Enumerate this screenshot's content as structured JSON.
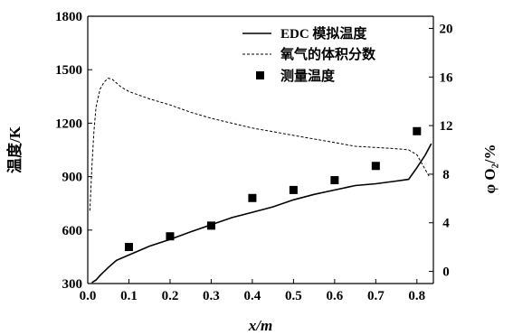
{
  "chart_data": {
    "type": "line",
    "xlabel": "x/m",
    "ylabel_left": "温度/K",
    "ylabel_right": "φ O₂/%",
    "xlim": [
      0,
      0.84
    ],
    "ylim_left": [
      300,
      1800
    ],
    "ylim_right": [
      -1,
      21
    ],
    "x_ticks": [
      "0.0",
      "0.1",
      "0.2",
      "0.3",
      "0.4",
      "0.5",
      "0.6",
      "0.7",
      "0.8"
    ],
    "y_ticks_left": [
      "300",
      "600",
      "900",
      "1200",
      "1500",
      "1800"
    ],
    "y_ticks_right": [
      "0",
      "4",
      "8",
      "12",
      "16",
      "20"
    ],
    "legend_position": "top-right",
    "series": [
      {
        "name": "EDC 模拟温度",
        "axis": "left",
        "style": "solid",
        "color": "#000000",
        "points": [
          [
            0.01,
            305
          ],
          [
            0.02,
            320
          ],
          [
            0.03,
            345
          ],
          [
            0.05,
            390
          ],
          [
            0.07,
            430
          ],
          [
            0.1,
            460
          ],
          [
            0.12,
            480
          ],
          [
            0.15,
            510
          ],
          [
            0.2,
            548
          ],
          [
            0.25,
            590
          ],
          [
            0.3,
            630
          ],
          [
            0.35,
            670
          ],
          [
            0.4,
            700
          ],
          [
            0.45,
            730
          ],
          [
            0.5,
            770
          ],
          [
            0.55,
            800
          ],
          [
            0.6,
            825
          ],
          [
            0.65,
            850
          ],
          [
            0.7,
            860
          ],
          [
            0.75,
            875
          ],
          [
            0.78,
            885
          ],
          [
            0.8,
            950
          ],
          [
            0.82,
            1020
          ],
          [
            0.835,
            1085
          ]
        ]
      },
      {
        "name": "氧气的体积分数",
        "axis": "right",
        "style": "dashed",
        "color": "#000000",
        "points": [
          [
            0.005,
            5
          ],
          [
            0.01,
            8.5
          ],
          [
            0.015,
            11.5
          ],
          [
            0.02,
            13.5
          ],
          [
            0.03,
            15
          ],
          [
            0.04,
            15.6
          ],
          [
            0.05,
            15.9
          ],
          [
            0.06,
            15.8
          ],
          [
            0.08,
            15.2
          ],
          [
            0.1,
            14.8
          ],
          [
            0.15,
            14.2
          ],
          [
            0.2,
            13.7
          ],
          [
            0.25,
            13.1
          ],
          [
            0.3,
            12.6
          ],
          [
            0.35,
            12.2
          ],
          [
            0.4,
            11.8
          ],
          [
            0.45,
            11.5
          ],
          [
            0.5,
            11.2
          ],
          [
            0.55,
            10.9
          ],
          [
            0.6,
            10.6
          ],
          [
            0.65,
            10.3
          ],
          [
            0.7,
            10.2
          ],
          [
            0.75,
            10.1
          ],
          [
            0.78,
            10
          ],
          [
            0.8,
            9.6
          ],
          [
            0.82,
            8.4
          ],
          [
            0.83,
            7.8
          ]
        ]
      },
      {
        "name": "测量温度",
        "axis": "left",
        "style": "square-markers",
        "color": "#000000",
        "points": [
          [
            0.1,
            505
          ],
          [
            0.2,
            565
          ],
          [
            0.3,
            625
          ],
          [
            0.4,
            780
          ],
          [
            0.5,
            825
          ],
          [
            0.6,
            880
          ],
          [
            0.7,
            960
          ],
          [
            0.8,
            1155
          ]
        ]
      }
    ]
  }
}
